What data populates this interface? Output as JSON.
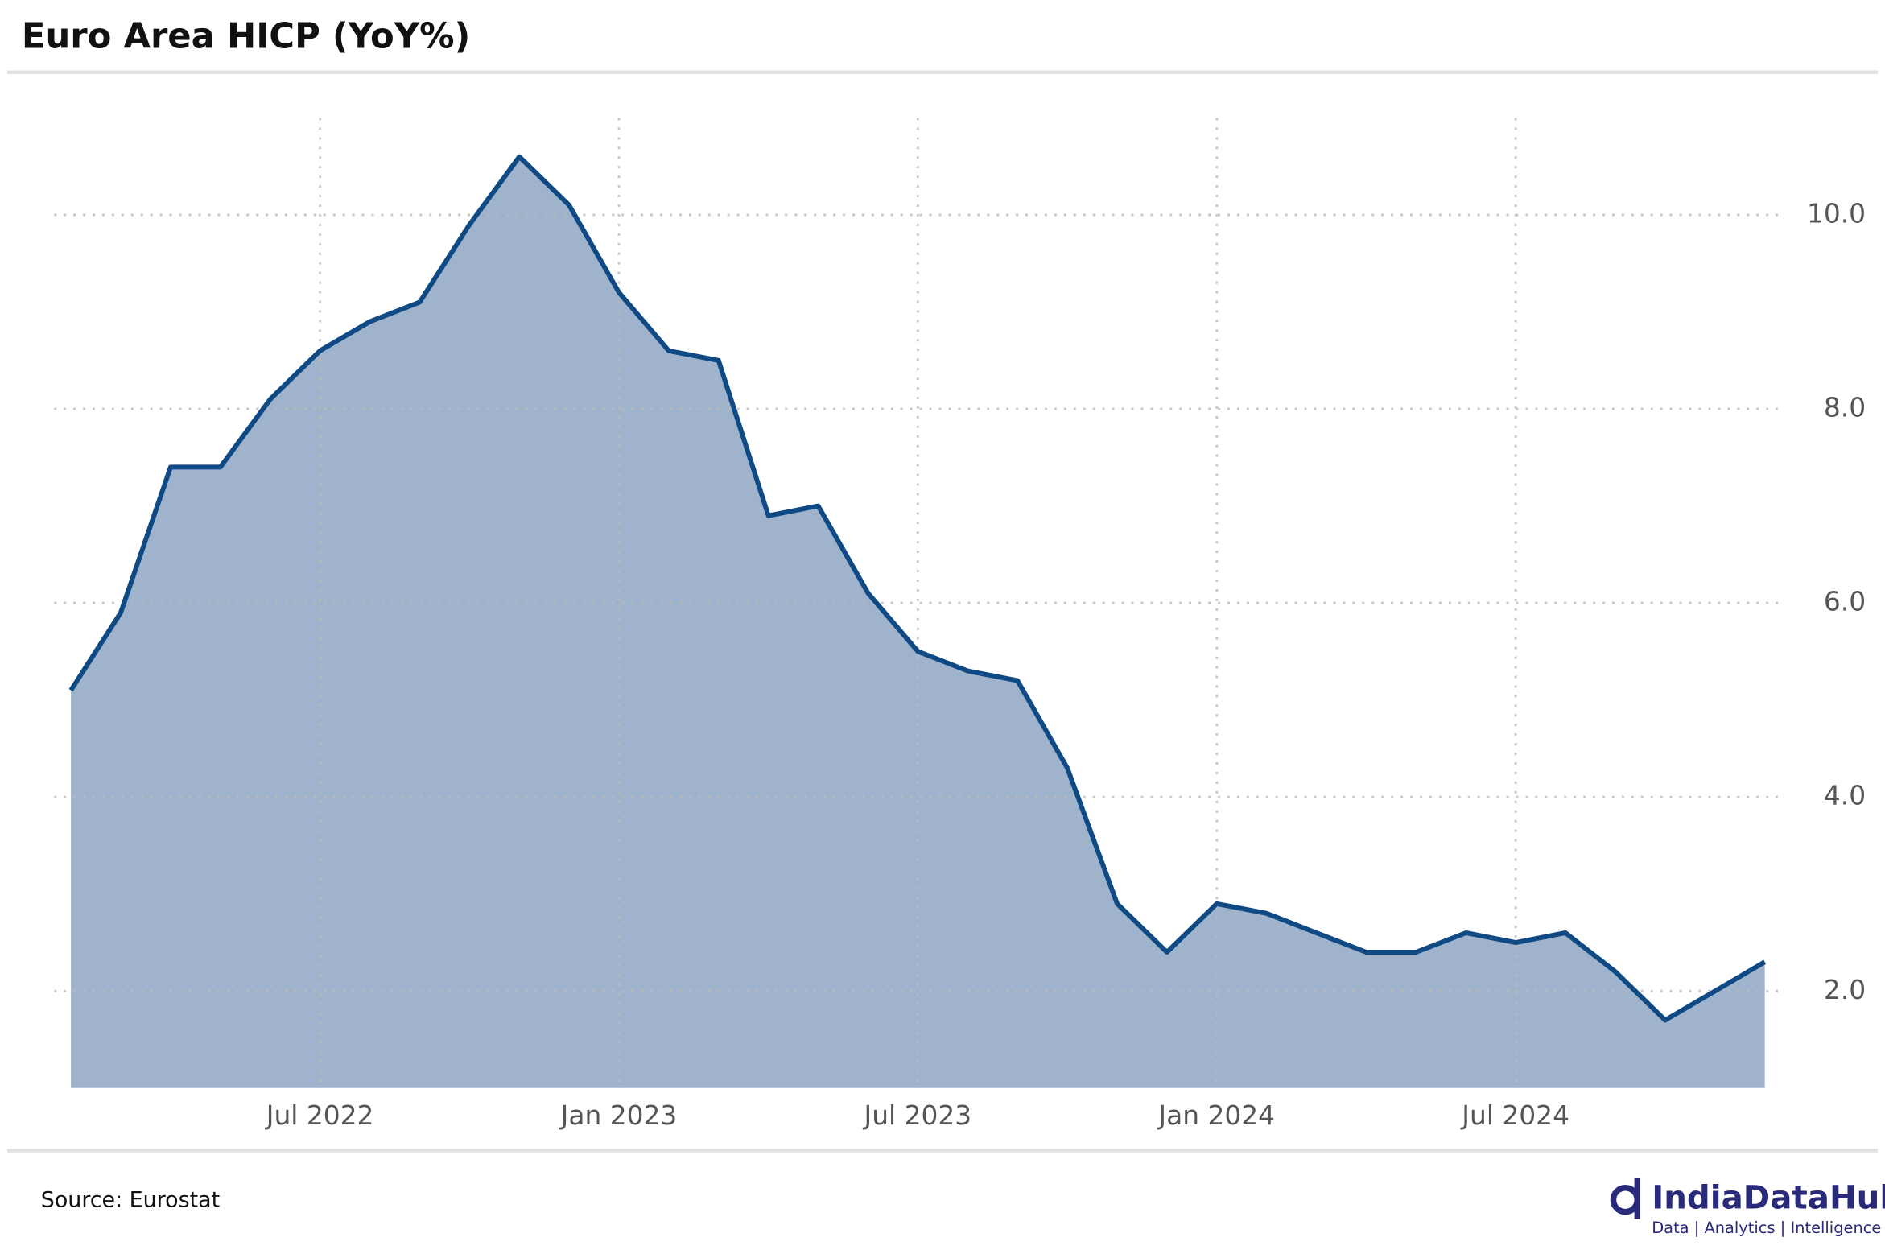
{
  "chart_data": {
    "type": "area",
    "title": "Euro Area HICP (YoY%)",
    "source": "Source: Eurostat",
    "logo": {
      "name": "IndiaDataHub",
      "tagline": "Data | Analytics | Intelligence"
    },
    "x": [
      "2022-01",
      "2022-02",
      "2022-03",
      "2022-04",
      "2022-05",
      "2022-06",
      "2022-07",
      "2022-08",
      "2022-09",
      "2022-10",
      "2022-11",
      "2022-12",
      "2023-01",
      "2023-02",
      "2023-03",
      "2023-04",
      "2023-05",
      "2023-06",
      "2023-07",
      "2023-08",
      "2023-09",
      "2023-10",
      "2023-11",
      "2023-12",
      "2024-01",
      "2024-02",
      "2024-03",
      "2024-04",
      "2024-05",
      "2024-06",
      "2024-07",
      "2024-08",
      "2024-09",
      "2024-10",
      "2024-11"
    ],
    "series": [
      {
        "name": "HICP",
        "color": "#0f4a85",
        "fill": "#9fb4cc",
        "values": [
          5.1,
          5.9,
          7.4,
          7.4,
          8.1,
          8.6,
          8.9,
          9.1,
          9.9,
          10.6,
          10.1,
          9.2,
          8.6,
          8.5,
          6.9,
          7.0,
          6.1,
          5.5,
          5.3,
          5.2,
          4.3,
          2.9,
          2.4,
          2.9,
          2.8,
          2.6,
          2.4,
          2.4,
          2.6,
          2.5,
          2.6,
          2.2,
          1.7,
          2.0,
          2.3
        ]
      }
    ],
    "xlim": [
      "2022-01",
      "2024-11"
    ],
    "xticks": [
      {
        "value": "2022-07",
        "label": "Jul 2022"
      },
      {
        "value": "2023-01",
        "label": "Jan 2023"
      },
      {
        "value": "2023-07",
        "label": "Jul 2023"
      },
      {
        "value": "2024-01",
        "label": "Jan 2024"
      },
      {
        "value": "2024-07",
        "label": "Jul 2024"
      }
    ],
    "ylim": [
      1,
      11
    ],
    "yticks": [
      {
        "value": 2,
        "label": "2.0"
      },
      {
        "value": 4,
        "label": "4.0"
      },
      {
        "value": 6,
        "label": "6.0"
      },
      {
        "value": 8,
        "label": "8.0"
      },
      {
        "value": 10,
        "label": "10.0"
      }
    ],
    "grid": true
  }
}
